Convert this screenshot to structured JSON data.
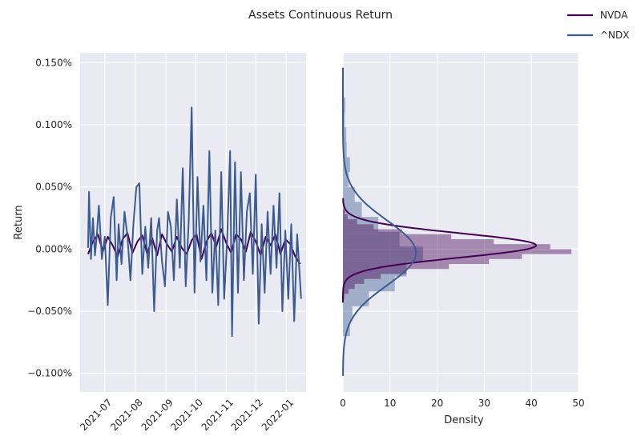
{
  "title": "Assets Continuous Return",
  "legend": {
    "placement": "top-right",
    "entries": [
      {
        "name": "NVDA",
        "color": "#440154"
      },
      {
        "name": "^NDX",
        "color": "#3b5b92"
      }
    ]
  },
  "chart_data": [
    {
      "type": "line",
      "ylabel": "Return",
      "xlim": [
        "2021-06-06",
        "2022-01-21"
      ],
      "ylim": [
        -0.115,
        0.158
      ],
      "y_unit": "%",
      "grid": true,
      "x_ticks": [
        "2021-07",
        "2021-08",
        "2021-09",
        "2021-10",
        "2021-11",
        "2021-12",
        "2022-01"
      ],
      "y_ticks": [
        -0.1,
        -0.05,
        0.0,
        0.05,
        0.1,
        0.15
      ],
      "y_tick_labels": [
        "−0.100%",
        "−0.050%",
        "0.000%",
        "0.050%",
        "0.100%",
        "0.150%"
      ],
      "series": [
        {
          "name": "NVDA",
          "color": "#440154",
          "x": [
            "2021-06-14",
            "2021-06-19",
            "2021-06-24",
            "2021-06-29",
            "2021-07-04",
            "2021-07-09",
            "2021-07-14",
            "2021-07-19",
            "2021-07-24",
            "2021-07-29",
            "2021-08-03",
            "2021-08-08",
            "2021-08-13",
            "2021-08-18",
            "2021-08-23",
            "2021-08-28",
            "2021-09-02",
            "2021-09-07",
            "2021-09-12",
            "2021-09-17",
            "2021-09-22",
            "2021-09-27",
            "2021-10-02",
            "2021-10-07",
            "2021-10-12",
            "2021-10-17",
            "2021-10-22",
            "2021-10-27",
            "2021-11-01",
            "2021-11-06",
            "2021-11-11",
            "2021-11-16",
            "2021-11-21",
            "2021-11-26",
            "2021-12-01",
            "2021-12-06",
            "2021-12-11",
            "2021-12-16",
            "2021-12-21",
            "2021-12-26",
            "2021-12-31",
            "2022-01-05",
            "2022-01-10",
            "2022-01-15"
          ],
          "y": [
            -0.004,
            0.006,
            0.012,
            -0.002,
            0.01,
            0.003,
            -0.006,
            0.008,
            0.013,
            -0.003,
            0.006,
            0.011,
            -0.004,
            0.009,
            -0.005,
            0.012,
            0.004,
            -0.002,
            0.01,
            0.001,
            -0.004,
            0.007,
            0.012,
            -0.008,
            0.006,
            0.013,
            0.002,
            0.016,
            0.005,
            -0.003,
            0.012,
            0.008,
            -0.002,
            0.014,
            0.006,
            -0.005,
            0.01,
            0.003,
            0.012,
            -0.004,
            0.008,
            0.004,
            -0.006,
            -0.012
          ]
        },
        {
          "name": "^NDX",
          "color": "#3b5b92",
          "x": [
            "2021-06-14",
            "2021-06-15",
            "2021-06-17",
            "2021-06-19",
            "2021-06-21",
            "2021-06-23",
            "2021-06-25",
            "2021-06-28",
            "2021-07-01",
            "2021-07-04",
            "2021-07-07",
            "2021-07-10",
            "2021-07-13",
            "2021-07-15",
            "2021-07-18",
            "2021-07-21",
            "2021-07-24",
            "2021-07-27",
            "2021-07-30",
            "2021-08-02",
            "2021-08-05",
            "2021-08-08",
            "2021-08-11",
            "2021-08-14",
            "2021-08-17",
            "2021-08-20",
            "2021-08-23",
            "2021-08-25",
            "2021-08-28",
            "2021-08-31",
            "2021-09-03",
            "2021-09-06",
            "2021-09-09",
            "2021-09-12",
            "2021-09-15",
            "2021-09-18",
            "2021-09-21",
            "2021-09-24",
            "2021-09-27",
            "2021-09-30",
            "2021-10-03",
            "2021-10-06",
            "2021-10-09",
            "2021-10-12",
            "2021-10-15",
            "2021-10-18",
            "2021-10-21",
            "2021-10-24",
            "2021-10-27",
            "2021-10-30",
            "2021-11-02",
            "2021-11-05",
            "2021-11-07",
            "2021-11-10",
            "2021-11-13",
            "2021-11-16",
            "2021-11-19",
            "2021-11-22",
            "2021-11-25",
            "2021-11-28",
            "2021-12-01",
            "2021-12-04",
            "2021-12-07",
            "2021-12-10",
            "2021-12-13",
            "2021-12-16",
            "2021-12-19",
            "2021-12-22",
            "2021-12-25",
            "2021-12-28",
            "2021-12-31",
            "2022-01-03",
            "2022-01-06",
            "2022-01-09",
            "2022-01-12",
            "2022-01-16"
          ],
          "y": [
            0.001,
            0.046,
            -0.008,
            0.025,
            -0.005,
            0.012,
            0.035,
            -0.008,
            0.01,
            -0.045,
            0.025,
            0.042,
            -0.025,
            0.02,
            -0.012,
            0.03,
            0.01,
            -0.025,
            0.02,
            0.05,
            0.053,
            -0.02,
            0.018,
            -0.015,
            0.025,
            -0.05,
            0.015,
            0.025,
            -0.01,
            -0.03,
            0.03,
            0.018,
            -0.025,
            0.04,
            -0.015,
            0.065,
            -0.03,
            0.022,
            0.114,
            -0.035,
            0.058,
            -0.01,
            0.035,
            -0.025,
            0.079,
            -0.035,
            0.015,
            -0.045,
            0.062,
            -0.04,
            0.008,
            0.079,
            -0.07,
            0.07,
            -0.035,
            0.062,
            -0.025,
            0.03,
            0.045,
            -0.02,
            0.06,
            -0.06,
            0.02,
            -0.035,
            0.03,
            -0.02,
            0.035,
            -0.015,
            0.045,
            -0.05,
            0.015,
            -0.04,
            0.02,
            -0.058,
            0.012,
            -0.04
          ]
        }
      ]
    },
    {
      "type": "histogram+kde",
      "orientation": "horizontal",
      "xlabel": "Density",
      "xlim": [
        0,
        50
      ],
      "x_ticks": [
        0,
        10,
        20,
        30,
        40,
        50
      ],
      "ylim": [
        -0.115,
        0.158
      ],
      "shared_y": true,
      "grid": true,
      "series": [
        {
          "name": "NVDA",
          "color": "#440154",
          "bin_width": 0.004,
          "bins": [
            {
              "y0": -0.04,
              "density": 0.3
            },
            {
              "y0": -0.036,
              "density": 1.2
            },
            {
              "y0": -0.032,
              "density": 2.5
            },
            {
              "y0": -0.028,
              "density": 4.5
            },
            {
              "y0": -0.024,
              "density": 8.0
            },
            {
              "y0": -0.02,
              "density": 13.5
            },
            {
              "y0": -0.016,
              "density": 22.5
            },
            {
              "y0": -0.012,
              "density": 31.0
            },
            {
              "y0": -0.008,
              "density": 38.0
            },
            {
              "y0": -0.004,
              "density": 48.5
            },
            {
              "y0": 0.0,
              "density": 44.0
            },
            {
              "y0": 0.004,
              "density": 32.0
            },
            {
              "y0": 0.008,
              "density": 23.0
            },
            {
              "y0": 0.012,
              "density": 12.5
            },
            {
              "y0": 0.016,
              "density": 6.5
            },
            {
              "y0": 0.02,
              "density": 3.0
            },
            {
              "y0": 0.024,
              "density": 1.0
            },
            {
              "y0": 0.028,
              "density": 0.4
            }
          ],
          "kde": {
            "mean": 0.003,
            "sd": 0.0098,
            "peak": 41.0,
            "y_range": [
              -0.043,
              0.041
            ]
          }
        },
        {
          "name": "^NDX",
          "color": "#3b5b92",
          "bin_width": 0.012,
          "bins": [
            {
              "y0": -0.07,
              "density": 1.5
            },
            {
              "y0": -0.058,
              "density": 2.0
            },
            {
              "y0": -0.046,
              "density": 5.5
            },
            {
              "y0": -0.034,
              "density": 11.0
            },
            {
              "y0": -0.022,
              "density": 13.5
            },
            {
              "y0": -0.01,
              "density": 17.0
            },
            {
              "y0": 0.002,
              "density": 12.0
            },
            {
              "y0": 0.014,
              "density": 7.5
            },
            {
              "y0": 0.026,
              "density": 4.0
            },
            {
              "y0": 0.038,
              "density": 2.5
            },
            {
              "y0": 0.05,
              "density": 1.2
            },
            {
              "y0": 0.062,
              "density": 1.5
            },
            {
              "y0": 0.074,
              "density": 0.8
            },
            {
              "y0": 0.086,
              "density": 0.7
            },
            {
              "y0": 0.098,
              "density": 0.4
            },
            {
              "y0": 0.11,
              "density": 0.5
            }
          ],
          "kde": {
            "mean": -0.003,
            "sd": 0.026,
            "peak": 15.5,
            "y_range": [
              -0.102,
              0.146
            ]
          }
        }
      ]
    }
  ]
}
